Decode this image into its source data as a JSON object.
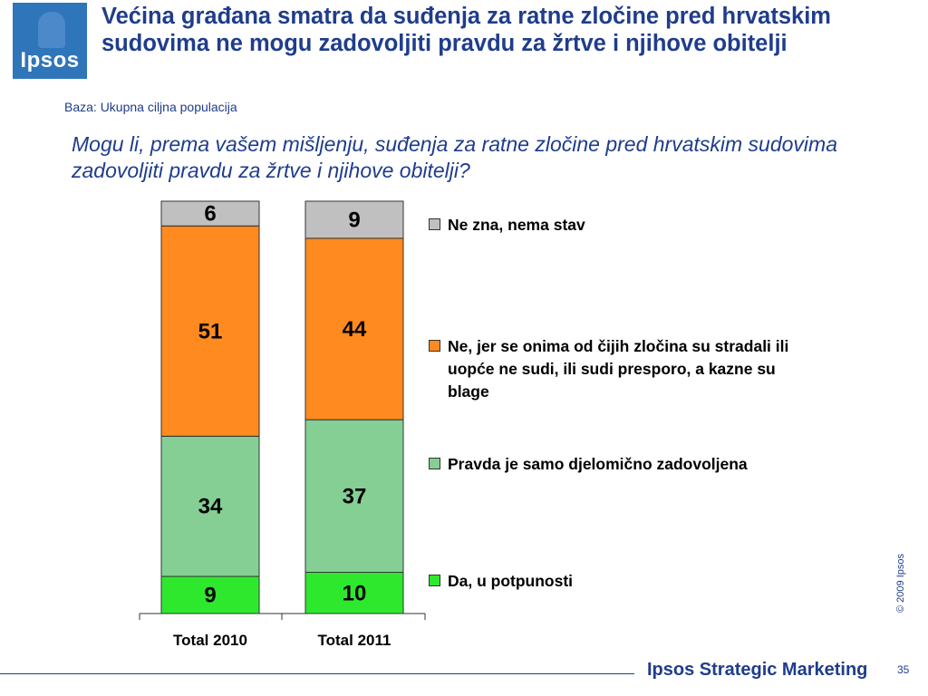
{
  "logo": {
    "text": "Ipsos"
  },
  "slide": {
    "title": "Većina građana smatra da suđenja za ratne zločine pred hrvatskim sudovima ne mogu zadovoljiti pravdu za žrtve i njihove obitelji",
    "base": "Baza: Ukupna ciljna populacija",
    "question": "Mogu li, prema vašem mišljenju, suđenja za ratne zločine pred hrvatskim sudovima zadovoljiti pravdu za žrtve i njihove obitelji?",
    "copyright": "© 2009 Ipsos",
    "footer_brand": "Ipsos Strategic Marketing",
    "page_number": "35"
  },
  "chart_data": {
    "type": "bar",
    "stacked": true,
    "categories": [
      "Total 2010",
      "Total 2011"
    ],
    "series": [
      {
        "name": "Da, u potpunosti",
        "values": [
          9,
          10
        ],
        "color": "#2ee82e"
      },
      {
        "name": "Pravda je samo djelomično zadovoljena",
        "values": [
          34,
          37
        ],
        "color": "#85cf95"
      },
      {
        "name": "Ne, jer se onima od čijih zločina su stradali ili uopće ne sudi, ili sudi presporo, a kazne su blage",
        "values": [
          51,
          44
        ],
        "color": "#ff8a1f"
      },
      {
        "name": "Ne zna, nema stav",
        "values": [
          6,
          9
        ],
        "color": "#c0c0c0"
      }
    ],
    "ylim": [
      0,
      100
    ],
    "grid": false,
    "legend_position": "right"
  }
}
